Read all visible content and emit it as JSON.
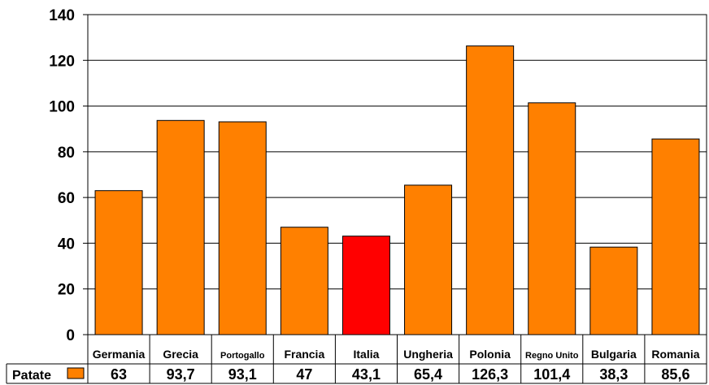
{
  "chart_data": {
    "type": "bar",
    "categories": [
      "Germania",
      "Grecia",
      "Portogallo",
      "Francia",
      "Italia",
      "Ungheria",
      "Polonia",
      "Regno Unito",
      "Bulgaria",
      "Romania"
    ],
    "series": [
      {
        "name": "Patate",
        "values": [
          63,
          93.7,
          93.1,
          47,
          43.1,
          65.4,
          126.3,
          101.4,
          38.3,
          85.6
        ],
        "value_labels": [
          "63",
          "93,7",
          "93,1",
          "47",
          "43,1",
          "65,4",
          "126,3",
          "101,4",
          "38,3",
          "85,6"
        ],
        "color": "#FF8000",
        "highlight": {
          "Italia": "#FF0000"
        }
      }
    ],
    "ylim": [
      0,
      140
    ],
    "yticks": [
      0,
      20,
      40,
      60,
      80,
      100,
      120,
      140
    ],
    "grid": true,
    "data_table": true,
    "title": "",
    "xlabel": "",
    "ylabel": ""
  }
}
